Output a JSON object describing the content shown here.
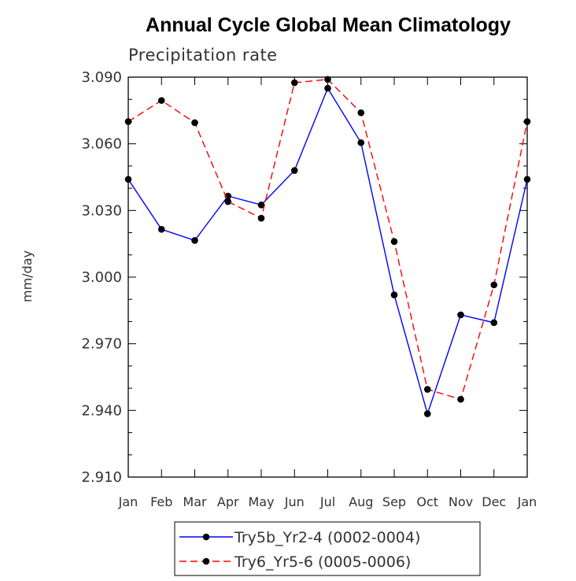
{
  "chart_data": {
    "type": "line",
    "title": "Annual Cycle Global Mean Climatology",
    "subtitle": "Precipitation rate",
    "xlabel": "",
    "ylabel": "mm/day",
    "categories": [
      "Jan",
      "Feb",
      "Mar",
      "Apr",
      "May",
      "Jun",
      "Jul",
      "Aug",
      "Sep",
      "Oct",
      "Nov",
      "Dec",
      "Jan"
    ],
    "ylim": [
      2.91,
      3.09
    ],
    "yticks": [
      "2.910",
      "2.940",
      "2.970",
      "3.000",
      "3.030",
      "3.060",
      "3.090"
    ],
    "ytick_values": [
      2.91,
      2.94,
      2.97,
      3.0,
      3.03,
      3.06,
      3.09
    ],
    "grid": false,
    "legend_position": "bottom",
    "series": [
      {
        "name": "Try5b_Yr2-4 (0002-0004)",
        "color": "#0000ff",
        "dash": "solid",
        "values": [
          3.044,
          3.0215,
          3.0165,
          3.0365,
          3.0325,
          3.048,
          3.085,
          3.0605,
          2.992,
          2.9385,
          2.983,
          2.9795,
          3.044
        ]
      },
      {
        "name": "Try6_Yr5-6 (0005-0006)",
        "color": "#ff0000",
        "dash": "dashed",
        "values": [
          3.07,
          3.0795,
          3.0695,
          3.034,
          3.0265,
          3.0875,
          3.089,
          3.074,
          3.016,
          2.9495,
          2.945,
          2.9965,
          3.07
        ]
      }
    ],
    "marker_color": "#000000"
  }
}
